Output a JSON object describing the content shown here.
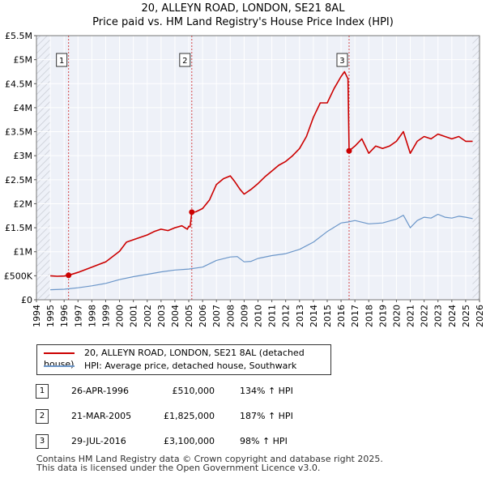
{
  "title_line1": "20, ALLEYN ROAD, LONDON, SE21 8AL",
  "title_line2": "Price paid vs. HM Land Registry's House Price Index (HPI)",
  "chart_data": {
    "type": "line",
    "title": "20, ALLEYN ROAD, LONDON, SE21 8AL — Price paid vs. HM Land Registry's House Price Index (HPI)",
    "xlim": [
      1994,
      2026
    ],
    "ylim": [
      0,
      5500000
    ],
    "x_ticks": [
      "1994",
      "1995",
      "1996",
      "1997",
      "1998",
      "1999",
      "2000",
      "2001",
      "2002",
      "2003",
      "2004",
      "2005",
      "2006",
      "2007",
      "2008",
      "2009",
      "2010",
      "2011",
      "2012",
      "2013",
      "2014",
      "2015",
      "2016",
      "2017",
      "2018",
      "2019",
      "2020",
      "2021",
      "2022",
      "2023",
      "2024",
      "2025",
      "2026"
    ],
    "y_ticks": [
      {
        "value": 0,
        "label": "£0"
      },
      {
        "value": 500000,
        "label": "£500K"
      },
      {
        "value": 1000000,
        "label": "£1M"
      },
      {
        "value": 1500000,
        "label": "£1.5M"
      },
      {
        "value": 2000000,
        "label": "£2M"
      },
      {
        "value": 2500000,
        "label": "£2.5M"
      },
      {
        "value": 3000000,
        "label": "£3M"
      },
      {
        "value": 3500000,
        "label": "£3.5M"
      },
      {
        "value": 4000000,
        "label": "£4M"
      },
      {
        "value": 4500000,
        "label": "£4.5M"
      },
      {
        "value": 5000000,
        "label": "£5M"
      },
      {
        "value": 5500000,
        "label": "£5.5M"
      }
    ],
    "data_start": 1995,
    "data_end": 2025.5,
    "series": [
      {
        "name": "20, ALLEYN ROAD, LONDON, SE21 8AL (detached house)",
        "color": "#cc0000",
        "points": [
          [
            1995.0,
            500000
          ],
          [
            1995.5,
            490000
          ],
          [
            1996.0,
            495000
          ],
          [
            1996.32,
            510000
          ],
          [
            1997.0,
            570000
          ],
          [
            1998.0,
            680000
          ],
          [
            1999.0,
            790000
          ],
          [
            2000.0,
            1010000
          ],
          [
            2000.5,
            1200000
          ],
          [
            2001.0,
            1250000
          ],
          [
            2002.0,
            1350000
          ],
          [
            2002.5,
            1420000
          ],
          [
            2003.0,
            1470000
          ],
          [
            2003.5,
            1440000
          ],
          [
            2004.0,
            1500000
          ],
          [
            2004.5,
            1540000
          ],
          [
            2004.9,
            1470000
          ],
          [
            2005.0,
            1530000
          ],
          [
            2005.1,
            1520000
          ],
          [
            2005.22,
            1825000
          ],
          [
            2005.5,
            1830000
          ],
          [
            2006.0,
            1900000
          ],
          [
            2006.5,
            2080000
          ],
          [
            2007.0,
            2400000
          ],
          [
            2007.5,
            2520000
          ],
          [
            2008.0,
            2580000
          ],
          [
            2008.3,
            2470000
          ],
          [
            2008.7,
            2300000
          ],
          [
            2009.0,
            2200000
          ],
          [
            2009.5,
            2300000
          ],
          [
            2010.0,
            2420000
          ],
          [
            2010.5,
            2560000
          ],
          [
            2011.0,
            2680000
          ],
          [
            2011.5,
            2800000
          ],
          [
            2012.0,
            2880000
          ],
          [
            2012.5,
            3000000
          ],
          [
            2013.0,
            3150000
          ],
          [
            2013.5,
            3400000
          ],
          [
            2014.0,
            3800000
          ],
          [
            2014.5,
            4100000
          ],
          [
            2015.0,
            4100000
          ],
          [
            2015.5,
            4400000
          ],
          [
            2016.0,
            4650000
          ],
          [
            2016.25,
            4750000
          ],
          [
            2016.5,
            4600000
          ],
          [
            2016.58,
            3100000
          ],
          [
            2017.0,
            3200000
          ],
          [
            2017.5,
            3350000
          ],
          [
            2018.0,
            3050000
          ],
          [
            2018.5,
            3200000
          ],
          [
            2019.0,
            3150000
          ],
          [
            2019.5,
            3200000
          ],
          [
            2020.0,
            3300000
          ],
          [
            2020.5,
            3500000
          ],
          [
            2021.0,
            3050000
          ],
          [
            2021.5,
            3300000
          ],
          [
            2022.0,
            3400000
          ],
          [
            2022.5,
            3350000
          ],
          [
            2023.0,
            3450000
          ],
          [
            2023.5,
            3400000
          ],
          [
            2024.0,
            3350000
          ],
          [
            2024.5,
            3400000
          ],
          [
            2025.0,
            3300000
          ],
          [
            2025.5,
            3300000
          ]
        ]
      },
      {
        "name": "HPI: Average price, detached house, Southwark",
        "color": "#6b96c9",
        "points": [
          [
            1995.0,
            210000
          ],
          [
            1996.0,
            220000
          ],
          [
            1997.0,
            250000
          ],
          [
            1998.0,
            290000
          ],
          [
            1999.0,
            340000
          ],
          [
            2000.0,
            420000
          ],
          [
            2001.0,
            480000
          ],
          [
            2002.0,
            530000
          ],
          [
            2003.0,
            580000
          ],
          [
            2004.0,
            620000
          ],
          [
            2005.0,
            640000
          ],
          [
            2006.0,
            680000
          ],
          [
            2007.0,
            820000
          ],
          [
            2008.0,
            890000
          ],
          [
            2008.5,
            900000
          ],
          [
            2009.0,
            790000
          ],
          [
            2009.5,
            800000
          ],
          [
            2010.0,
            860000
          ],
          [
            2011.0,
            920000
          ],
          [
            2012.0,
            960000
          ],
          [
            2013.0,
            1050000
          ],
          [
            2014.0,
            1200000
          ],
          [
            2015.0,
            1420000
          ],
          [
            2016.0,
            1600000
          ],
          [
            2016.5,
            1620000
          ],
          [
            2017.0,
            1650000
          ],
          [
            2018.0,
            1580000
          ],
          [
            2019.0,
            1600000
          ],
          [
            2020.0,
            1680000
          ],
          [
            2020.5,
            1760000
          ],
          [
            2021.0,
            1500000
          ],
          [
            2021.5,
            1650000
          ],
          [
            2022.0,
            1720000
          ],
          [
            2022.5,
            1700000
          ],
          [
            2023.0,
            1780000
          ],
          [
            2023.5,
            1720000
          ],
          [
            2024.0,
            1700000
          ],
          [
            2024.5,
            1740000
          ],
          [
            2025.0,
            1720000
          ],
          [
            2025.5,
            1690000
          ]
        ]
      }
    ],
    "sales": [
      {
        "label": "1",
        "x": 1996.32,
        "y": 510000
      },
      {
        "label": "2",
        "x": 2005.22,
        "y": 1825000
      },
      {
        "label": "3",
        "x": 2016.58,
        "y": 3100000
      }
    ]
  },
  "legend": [
    {
      "label": "20, ALLEYN ROAD, LONDON, SE21 8AL (detached house)",
      "color": "#cc0000"
    },
    {
      "label": "HPI: Average price, detached house, Southwark",
      "color": "#6b96c9"
    }
  ],
  "sales_table": [
    {
      "num": "1",
      "date": "26-APR-1996",
      "price": "£510,000",
      "hpi": "134% ↑ HPI"
    },
    {
      "num": "2",
      "date": "21-MAR-2005",
      "price": "£1,825,000",
      "hpi": "187% ↑ HPI"
    },
    {
      "num": "3",
      "date": "29-JUL-2016",
      "price": "£3,100,000",
      "hpi": "98% ↑ HPI"
    }
  ],
  "footer_line1": "Contains HM Land Registry data © Crown copyright and database right 2025.",
  "footer_line2": "This data is licensed under the Open Government Licence v3.0."
}
